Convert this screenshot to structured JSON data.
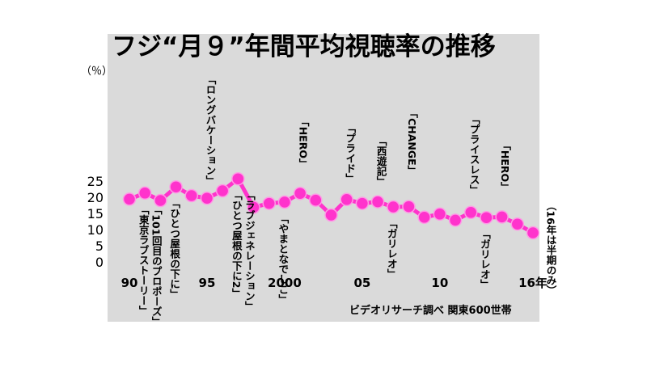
{
  "chart_data": {
    "type": "line",
    "title": "フジ“月９”年間平均視聴率の推移",
    "ylabel": "（％）",
    "xlabel": "",
    "x": [
      1990,
      1991,
      1992,
      1993,
      1994,
      1995,
      1996,
      1997,
      1998,
      1999,
      2000,
      2001,
      2002,
      2003,
      2004,
      2005,
      2006,
      2007,
      2008,
      2009,
      2010,
      2011,
      2012,
      2013,
      2014,
      2015,
      2016
    ],
    "series": [
      {
        "values": [
          19.4,
          21.3,
          19.0,
          23.2,
          20.5,
          19.7,
          22.0,
          25.7,
          16.9,
          18.1,
          18.5,
          21.2,
          19.1,
          14.5,
          19.3,
          18.1,
          18.6,
          17.0,
          17.1,
          13.8,
          14.8,
          12.9,
          15.3,
          13.7,
          13.9,
          11.7,
          9.0
        ]
      }
    ],
    "ylim": [
      0,
      30
    ],
    "yticks": [
      0,
      5,
      10,
      15,
      20,
      25
    ],
    "xtick_labels": [
      {
        "x": 1990,
        "label": "90"
      },
      {
        "x": 1995,
        "label": "95"
      },
      {
        "x": 2000,
        "label": "2000"
      },
      {
        "x": 2005,
        "label": "05"
      },
      {
        "x": 2010,
        "label": "10"
      },
      {
        "x": 2016,
        "label": "16年"
      }
    ],
    "annotations": [
      {
        "x": 1991,
        "text": "「東京ラブストーリー」",
        "side": "below"
      },
      {
        "x": 1991,
        "text": "「101回目のプロポーズ」",
        "side": "below"
      },
      {
        "x": 1993,
        "text": "「ひとつ屋根の下に」",
        "side": "below"
      },
      {
        "x": 1995,
        "text": "「ロングバケーション」",
        "side": "above"
      },
      {
        "x": 1997,
        "text": "「ひとつ屋根の下に2」",
        "side": "below"
      },
      {
        "x": 1997,
        "text": "「ラブジェネレーション」",
        "side": "below"
      },
      {
        "x": 2001,
        "text": "「HERO」",
        "side": "above"
      },
      {
        "x": 2000,
        "text": "「やまとなでしこ」",
        "side": "below"
      },
      {
        "x": 2004,
        "text": "「プライド」",
        "side": "above"
      },
      {
        "x": 2006,
        "text": "「西遊記」",
        "side": "above"
      },
      {
        "x": 2007,
        "text": "「ガリレオ」",
        "side": "below"
      },
      {
        "x": 2008,
        "text": "「CHANGE」",
        "side": "above"
      },
      {
        "x": 2012,
        "text": "「プライスレス」",
        "side": "above"
      },
      {
        "x": 2013,
        "text": "「ガリレオ」",
        "side": "below"
      },
      {
        "x": 2014,
        "text": "「HERO」",
        "side": "above"
      },
      {
        "x": 2016,
        "text": "（16年は半期のみ）",
        "side": "right"
      }
    ],
    "source": "ビデオリサーチ調べ 関東600世帯",
    "grid": false,
    "colors": {
      "line": "#ff33cc",
      "marker": "#ff33cc",
      "background": "#dadada"
    }
  }
}
